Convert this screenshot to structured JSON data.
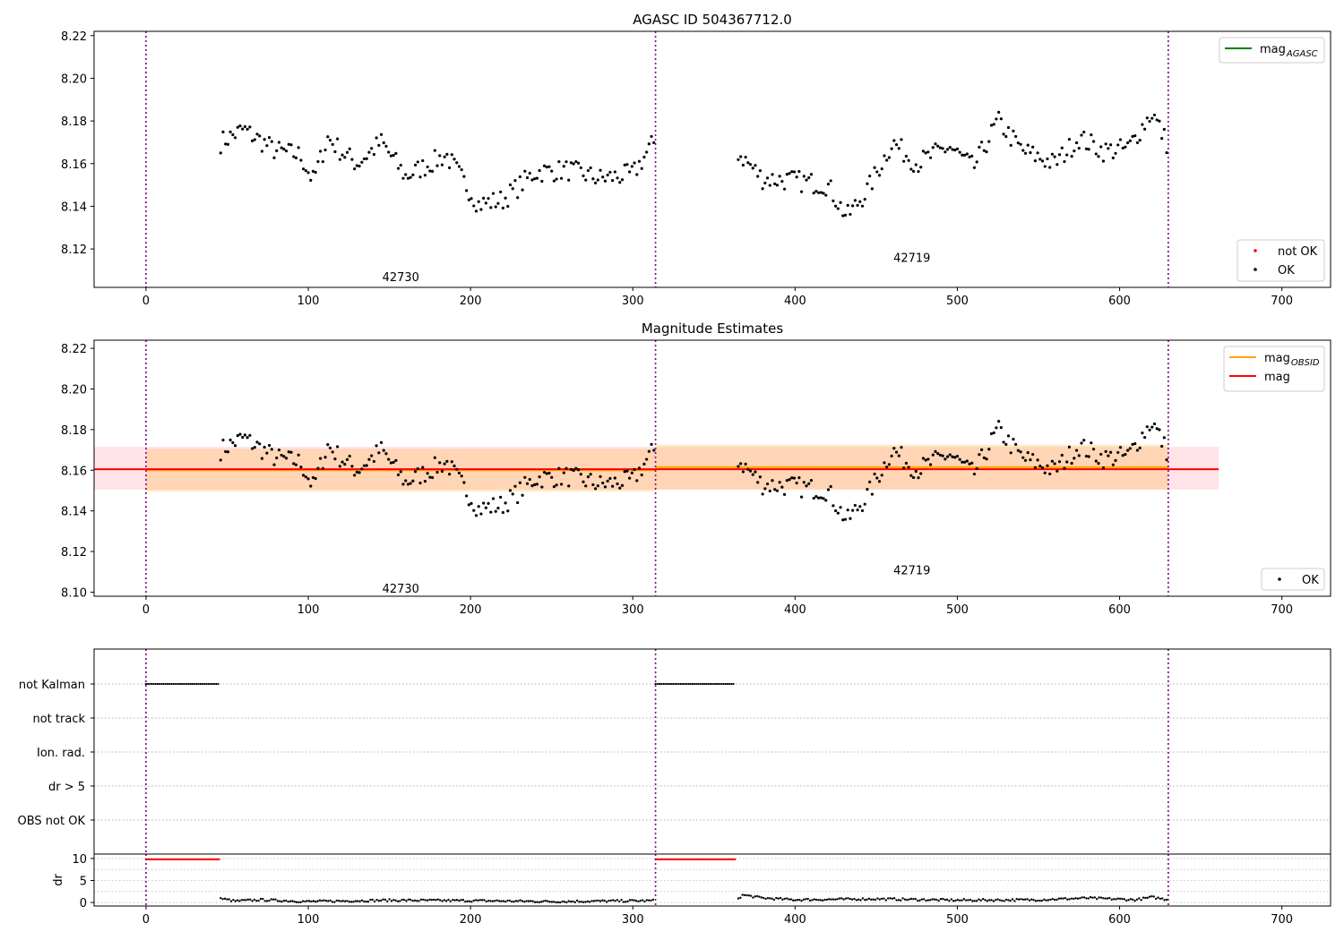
{
  "chart_data": [
    {
      "type": "scatter",
      "title": "AGASC ID 504367712.0",
      "xlim": [
        -32,
        730
      ],
      "ylim": [
        8.102,
        8.222
      ],
      "xticks": [
        0,
        100,
        200,
        300,
        400,
        500,
        600,
        700
      ],
      "yticks": [
        8.12,
        8.14,
        8.16,
        8.18,
        8.2,
        8.22
      ],
      "tick_format": 2,
      "grid": false,
      "vlines": [
        0,
        314,
        630
      ],
      "obsid_labels": [
        {
          "text": "42730",
          "x": 157,
          "y": 8.107
        },
        {
          "text": "42719",
          "x": 472,
          "y": 8.116
        }
      ],
      "legends": [
        {
          "position": "top-right",
          "entries": [
            {
              "label": "mag",
              "sub": "AGASC",
              "kind": "line",
              "color": "#008000"
            }
          ]
        },
        {
          "position": "bottom-right",
          "entries": [
            {
              "label": "not OK",
              "kind": "dot",
              "color": "#ff0000"
            },
            {
              "label": "OK",
              "kind": "dot",
              "color": "#000000"
            }
          ]
        }
      ],
      "series": [
        {
          "name": "OK",
          "color": "#000000",
          "marker": "dot",
          "segments": [
            {
              "x_start": 46,
              "x_end": 313,
              "step": 1.5,
              "knots": [
                [
                  46,
                  8.17
                ],
                [
                  60,
                  8.176
                ],
                [
                  80,
                  8.166
                ],
                [
                  95,
                  8.164
                ],
                [
                  103,
                  8.152
                ],
                [
                  112,
                  8.172
                ],
                [
                  120,
                  8.166
                ],
                [
                  130,
                  8.16
                ],
                [
                  145,
                  8.17
                ],
                [
                  160,
                  8.154
                ],
                [
                  185,
                  8.164
                ],
                [
                  205,
                  8.141
                ],
                [
                  220,
                  8.143
                ],
                [
                  240,
                  8.156
                ],
                [
                  260,
                  8.157
                ],
                [
                  280,
                  8.153
                ],
                [
                  300,
                  8.155
                ],
                [
                  313,
                  8.17
                ]
              ]
            },
            {
              "x_start": 365,
              "x_end": 630,
              "step": 1.5,
              "knots": [
                [
                  365,
                  8.165
                ],
                [
                  380,
                  8.153
                ],
                [
                  400,
                  8.152
                ],
                [
                  420,
                  8.15
                ],
                [
                  432,
                  8.135
                ],
                [
                  445,
                  8.148
                ],
                [
                  460,
                  8.17
                ],
                [
                  475,
                  8.16
                ],
                [
                  495,
                  8.168
                ],
                [
                  510,
                  8.158
                ],
                [
                  525,
                  8.18
                ],
                [
                  540,
                  8.166
                ],
                [
                  560,
                  8.16
                ],
                [
                  575,
                  8.172
                ],
                [
                  590,
                  8.166
                ],
                [
                  605,
                  8.167
                ],
                [
                  620,
                  8.184
                ],
                [
                  630,
                  8.168
                ]
              ]
            }
          ],
          "noise": 0.005
        }
      ]
    },
    {
      "type": "scatter",
      "title": "Magnitude Estimates",
      "xlim": [
        -32,
        730
      ],
      "ylim": [
        8.098,
        8.224
      ],
      "xticks": [
        0,
        100,
        200,
        300,
        400,
        500,
        600,
        700
      ],
      "yticks": [
        8.1,
        8.12,
        8.14,
        8.16,
        8.18,
        8.2,
        8.22
      ],
      "tick_format": 2,
      "grid": false,
      "vlines": [
        0,
        314,
        630
      ],
      "obsid_labels": [
        {
          "text": "42730",
          "x": 157,
          "y": 8.102
        },
        {
          "text": "42719",
          "x": 472,
          "y": 8.111
        }
      ],
      "bands": [
        {
          "x0": -32,
          "x1": 661,
          "y0": 8.1505,
          "y1": 8.1715,
          "color": "#ffc0cb",
          "opacity": 0.45
        },
        {
          "x0": 0,
          "x1": 314,
          "y0": 8.1495,
          "y1": 8.1705,
          "color": "#ffa500",
          "opacity": 0.22
        },
        {
          "x0": 314,
          "x1": 630,
          "y0": 8.1505,
          "y1": 8.1725,
          "color": "#ffa500",
          "opacity": 0.22
        }
      ],
      "hlines": [
        {
          "x0": 0,
          "x1": 314,
          "y": 8.16,
          "color": "#ffa500",
          "width": 2
        },
        {
          "x0": 314,
          "x1": 630,
          "y": 8.1615,
          "color": "#ffa500",
          "width": 2
        },
        {
          "x0": -32,
          "x1": 661,
          "y": 8.1605,
          "color": "#ff0000",
          "width": 2
        }
      ],
      "legends": [
        {
          "position": "top-right",
          "entries": [
            {
              "label": "mag",
              "sub": "OBSID",
              "kind": "line",
              "color": "#ffa500"
            },
            {
              "label": "mag",
              "kind": "line",
              "color": "#ff0000"
            }
          ]
        },
        {
          "position": "bottom-right",
          "entries": [
            {
              "label": "OK",
              "kind": "dot",
              "color": "#000000"
            }
          ]
        }
      ],
      "series": [
        {
          "name": "OK",
          "color": "#000000",
          "marker": "dot",
          "same_as_first_panel": true
        }
      ]
    },
    {
      "type": "scatter",
      "xlim": [
        -32,
        730
      ],
      "ylabels": [
        "not Kalman",
        "not track",
        "Ion. rad.",
        "dr > 5",
        "OBS not OK"
      ],
      "vlines": [
        0,
        314,
        630
      ],
      "flag_series": [
        {
          "label": "not Kalman",
          "x_start": 0,
          "x_end": 45,
          "color": "#000000"
        },
        {
          "label": "not Kalman",
          "x_start": 314,
          "x_end": 363,
          "color": "#000000"
        }
      ]
    },
    {
      "type": "scatter",
      "ylabel": "dr",
      "xlim": [
        -32,
        730
      ],
      "ylim": [
        -0.8,
        11
      ],
      "xticks": [
        0,
        100,
        200,
        300,
        400,
        500,
        600,
        700
      ],
      "yticks": [
        0,
        5,
        10
      ],
      "tick_format": 0,
      "vlines": [
        0,
        314,
        630
      ],
      "series": [
        {
          "name": "dr clipped",
          "color": "#ff0000",
          "segments": [
            {
              "x_start": 0,
              "x_end": 45,
              "y": 9.8
            },
            {
              "x_start": 314,
              "x_end": 363,
              "y": 9.8
            }
          ]
        },
        {
          "name": "dr",
          "color": "#000000",
          "segments": [
            {
              "x_start": 46,
              "x_end": 313,
              "knots": [
                [
                  46,
                  0.9
                ],
                [
                  55,
                  0.3
                ],
                [
                  70,
                  0.6
                ],
                [
                  100,
                  0.2
                ],
                [
                  150,
                  0.5
                ],
                [
                  200,
                  0.4
                ],
                [
                  250,
                  0.2
                ],
                [
                  313,
                  0.4
                ]
              ]
            },
            {
              "x_start": 365,
              "x_end": 630,
              "knots": [
                [
                  365,
                  1.0
                ],
                [
                  368,
                  1.7
                ],
                [
                  380,
                  1.0
                ],
                [
                  400,
                  0.6
                ],
                [
                  450,
                  0.8
                ],
                [
                  500,
                  0.5
                ],
                [
                  550,
                  0.6
                ],
                [
                  580,
                  1.0
                ],
                [
                  610,
                  0.6
                ],
                [
                  620,
                  1.2
                ],
                [
                  630,
                  0.6
                ]
              ]
            }
          ]
        }
      ]
    }
  ]
}
